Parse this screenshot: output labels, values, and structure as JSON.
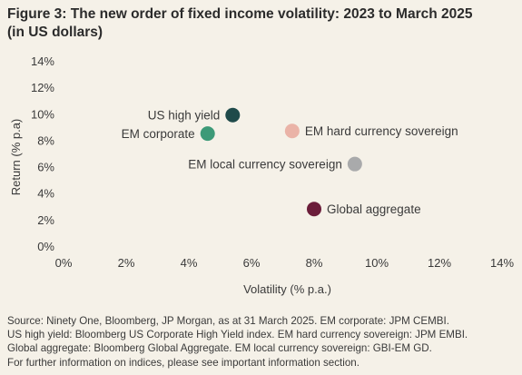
{
  "title_line1": "Figure 3: The new order of fixed income volatility: 2023 to March 2025",
  "title_line2": "(in US dollars)",
  "chart_data": {
    "type": "scatter",
    "xlabel": "Volatility (% p.a.)",
    "ylabel": "Return (% p.a)",
    "xlim": [
      0,
      14
    ],
    "ylim": [
      0,
      14
    ],
    "x_ticks": [
      "0%",
      "2%",
      "4%",
      "6%",
      "8%",
      "10%",
      "12%",
      "14%"
    ],
    "y_ticks": [
      "0%",
      "2%",
      "4%",
      "6%",
      "8%",
      "10%",
      "12%",
      "14%"
    ],
    "grid": false,
    "points": [
      {
        "label": "US high yield",
        "x": 5.4,
        "y": 9.9,
        "color": "#1f4a4a",
        "label_side": "left"
      },
      {
        "label": "EM corporate",
        "x": 4.6,
        "y": 8.5,
        "color": "#3d9a78",
        "label_side": "left"
      },
      {
        "label": "EM hard currency sovereign",
        "x": 7.3,
        "y": 8.7,
        "color": "#eab3a7",
        "label_side": "right"
      },
      {
        "label": "EM local currency sovereign",
        "x": 9.3,
        "y": 6.2,
        "color": "#a9aaab",
        "label_side": "left"
      },
      {
        "label": "Global aggregate",
        "x": 8.0,
        "y": 2.8,
        "color": "#6b1d3a",
        "label_side": "right"
      }
    ]
  },
  "footnote": [
    "Source: Ninety One, Bloomberg, JP Morgan, as at 31 March 2025. EM corporate: JPM CEMBI.",
    "US high yield: Bloomberg US Corporate High Yield index. EM hard currency sovereign: JPM EMBI.",
    "Global aggregate: Bloomberg Global Aggregate. EM local currency sovereign: GBI-EM GD.",
    "For further information on indices, please see important information section."
  ]
}
